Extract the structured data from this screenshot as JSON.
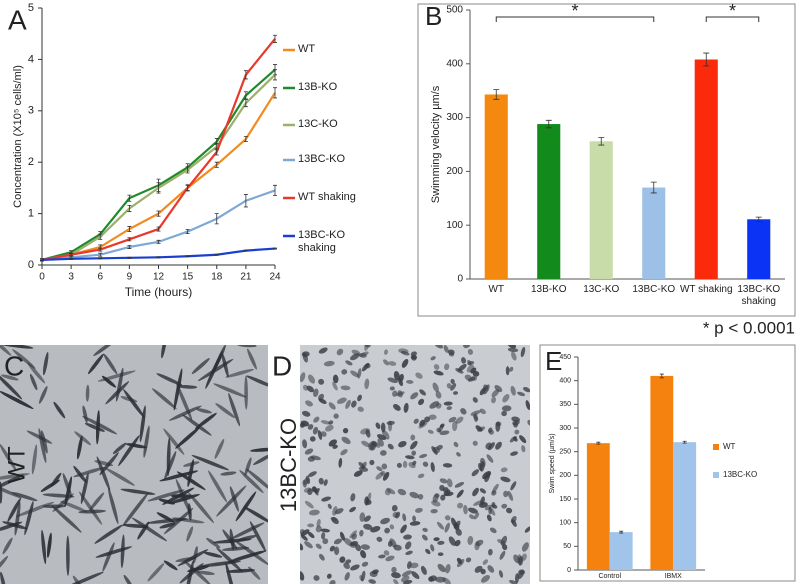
{
  "chart_data": [
    {
      "type": "line",
      "panel": "A",
      "xlabel": "Time (hours)",
      "ylabel": "Concentration (X10⁵ cells/ml)",
      "x": [
        0,
        3,
        6,
        9,
        12,
        15,
        18,
        21,
        24
      ],
      "xlim": [
        0,
        24
      ],
      "xticks": [
        0,
        3,
        6,
        9,
        12,
        15,
        18,
        21,
        24
      ],
      "ylim": [
        0,
        5
      ],
      "yticks": [
        0,
        1,
        2,
        3,
        4,
        5
      ],
      "series": [
        {
          "name": "WT",
          "color": "#f28a1e",
          "values": [
            0.1,
            0.2,
            0.35,
            0.7,
            1.0,
            1.5,
            1.95,
            2.45,
            3.35
          ],
          "errors": [
            0.02,
            0.03,
            0.04,
            0.05,
            0.05,
            0.06,
            0.05,
            0.05,
            0.1
          ]
        },
        {
          "name": "13B-KO",
          "color": "#1f8a2a",
          "values": [
            0.1,
            0.25,
            0.6,
            1.3,
            1.55,
            1.9,
            2.4,
            3.3,
            3.8
          ],
          "errors": [
            0.02,
            0.03,
            0.05,
            0.06,
            0.12,
            0.07,
            0.06,
            0.07,
            0.1
          ]
        },
        {
          "name": "13C-KO",
          "color": "#9bb06a",
          "values": [
            0.1,
            0.2,
            0.55,
            1.1,
            1.5,
            1.85,
            2.3,
            3.15,
            3.7
          ],
          "errors": [
            0.02,
            0.03,
            0.05,
            0.06,
            0.1,
            0.06,
            0.06,
            0.07,
            0.1
          ]
        },
        {
          "name": "13BC-KO",
          "color": "#7ea9d6",
          "values": [
            0.1,
            0.15,
            0.2,
            0.35,
            0.45,
            0.65,
            0.9,
            1.25,
            1.45
          ],
          "errors": [
            0.02,
            0.02,
            0.03,
            0.03,
            0.03,
            0.04,
            0.1,
            0.12,
            0.1
          ]
        },
        {
          "name": "WT shaking",
          "color": "#e8392a",
          "values": [
            0.1,
            0.2,
            0.3,
            0.5,
            0.7,
            1.5,
            2.2,
            3.7,
            4.4
          ],
          "errors": [
            0.02,
            0.02,
            0.03,
            0.03,
            0.04,
            0.05,
            0.06,
            0.08,
            0.07
          ]
        },
        {
          "name": "13BC-KO shaking",
          "color": "#1a3fd0",
          "values": [
            0.1,
            0.12,
            0.13,
            0.14,
            0.15,
            0.17,
            0.2,
            0.28,
            0.32
          ],
          "errors": [
            0.01,
            0.01,
            0.01,
            0.01,
            0.01,
            0.01,
            0.01,
            0.01,
            0.01
          ]
        }
      ]
    },
    {
      "type": "bar",
      "panel": "B",
      "ylabel": "Swimming velocity µm/s",
      "categories": [
        "WT",
        "13B-KO",
        "13C-KO",
        "13BC-KO",
        "WT shaking",
        "13BC-KO shaking"
      ],
      "values": [
        343,
        288,
        256,
        170,
        408,
        111
      ],
      "errors": [
        9,
        7,
        7,
        10,
        12,
        4
      ],
      "colors": [
        "#f5880f",
        "#128a1c",
        "#c7dca8",
        "#9cc0e6",
        "#fb2a0a",
        "#0a33f5"
      ],
      "ylim": [
        0,
        500
      ],
      "yticks": [
        0,
        100,
        200,
        300,
        400,
        500
      ],
      "annotations": [
        "*",
        "*"
      ],
      "footnote": "* p < 0.0001"
    },
    {
      "type": "bar",
      "panel": "E",
      "ylabel": "Swim speed (µm/s)",
      "categories": [
        "Control",
        "IBMX"
      ],
      "series": [
        {
          "name": "WT",
          "color": "#f5820e",
          "values": [
            268,
            410
          ],
          "errors": [
            2,
            4
          ]
        },
        {
          "name": "13BC-KO",
          "color": "#a0c4ea",
          "values": [
            80,
            270
          ],
          "errors": [
            2,
            2
          ]
        }
      ],
      "ylim": [
        0,
        450
      ],
      "yticks": [
        0,
        50,
        100,
        150,
        200,
        250,
        300,
        350,
        400,
        450
      ]
    }
  ],
  "images": [
    {
      "panel": "C",
      "label": "WT"
    },
    {
      "panel": "D",
      "label": "13BC-KO"
    }
  ]
}
